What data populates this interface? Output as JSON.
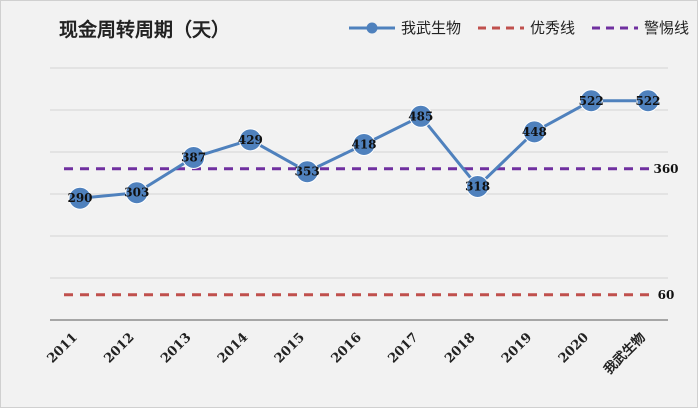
{
  "chart_data": {
    "type": "line",
    "title": "现金周转周期（天）",
    "categories": [
      "2011",
      "2012",
      "2013",
      "2014",
      "2015",
      "2016",
      "2017",
      "2018",
      "2019",
      "2020",
      "我武生物"
    ],
    "series": [
      {
        "name": "我武生物",
        "values": [
          290,
          303,
          387,
          429,
          353,
          418,
          485,
          318,
          448,
          522,
          522
        ],
        "color": "#4f81bd",
        "style": "solid-with-markers"
      },
      {
        "name": "优秀线",
        "values": [
          60,
          60,
          60,
          60,
          60,
          60,
          60,
          60,
          60,
          60,
          60
        ],
        "color": "#c0504d",
        "style": "dashed",
        "end_label": "60"
      },
      {
        "name": "警惕线",
        "values": [
          360,
          360,
          360,
          360,
          360,
          360,
          360,
          360,
          360,
          360,
          360
        ],
        "color": "#7030a0",
        "style": "dashed",
        "end_label": "360"
      }
    ],
    "ylim": [
      0,
      600
    ],
    "grid": true,
    "legend": "top-right"
  }
}
